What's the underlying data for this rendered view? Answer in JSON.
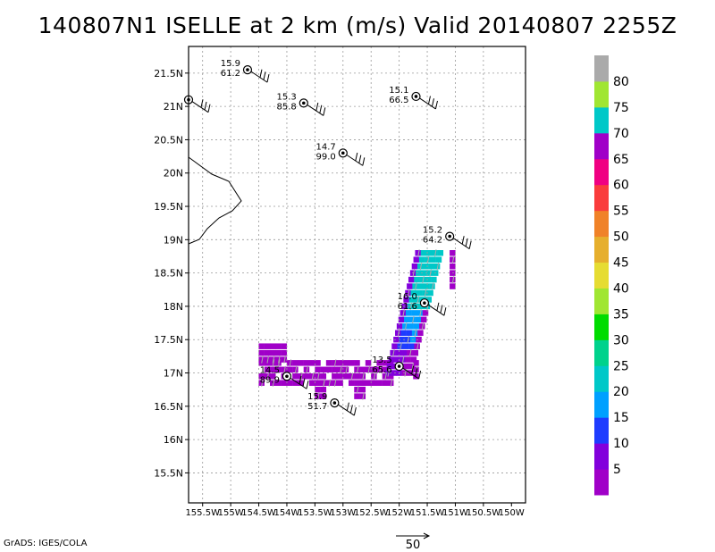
{
  "title": "140807N1 ISELLE at 2 km (m/s) Valid 20140807 2255Z",
  "footer": "GrADS: IGES/COLA",
  "chart_data": {
    "type": "heatmap",
    "title": "140807N1 ISELLE at 2 km (m/s) Valid 20140807 2255Z",
    "x_ticks": [
      "155.5W",
      "155W",
      "154.5W",
      "154W",
      "153.5W",
      "153W",
      "152.5W",
      "152W",
      "151.5W",
      "151W",
      "150.5W",
      "150W"
    ],
    "y_ticks": [
      "15.5N",
      "16N",
      "16.5N",
      "17N",
      "17.5N",
      "18N",
      "18.5N",
      "19N",
      "19.5N",
      "20N",
      "20.5N",
      "21N",
      "21.5N"
    ],
    "xlim": [
      -155.75,
      -149.75
    ],
    "ylim": [
      15.05,
      21.9
    ],
    "grid": true,
    "colorbar": {
      "levels": [
        5,
        10,
        15,
        20,
        25,
        30,
        35,
        40,
        45,
        50,
        55,
        60,
        65,
        70,
        75,
        80
      ],
      "colors": [
        "#a000c8",
        "#8200dc",
        "#1e3cff",
        "#00a0ff",
        "#00c8c8",
        "#00d28c",
        "#00dc00",
        "#a0e632",
        "#e6dc32",
        "#e6af2d",
        "#f08228",
        "#fa3c3c",
        "#f00082",
        "#a000c8",
        "#00c8c8",
        "#a0e632",
        "#aaaaaa"
      ],
      "labels": [
        "5",
        "10",
        "15",
        "20",
        "25",
        "30",
        "35",
        "40",
        "45",
        "50",
        "55",
        "60",
        "65",
        "70",
        "75",
        "80"
      ]
    },
    "vector_scale_label": "50",
    "stations": [
      {
        "lon": -155.75,
        "lat": 21.1,
        "top": "",
        "bottom": ""
      },
      {
        "lon": -154.7,
        "lat": 21.55,
        "top": "15.9",
        "bottom": "61.2"
      },
      {
        "lon": -153.7,
        "lat": 21.05,
        "top": "15.3",
        "bottom": "85.8"
      },
      {
        "lon": -151.7,
        "lat": 21.15,
        "top": "15.1",
        "bottom": "66.5"
      },
      {
        "lon": -153.0,
        "lat": 20.3,
        "top": "14.7",
        "bottom": "99.0"
      },
      {
        "lon": -151.1,
        "lat": 19.05,
        "top": "15.2",
        "bottom": "64.2"
      },
      {
        "lon": -151.55,
        "lat": 18.05,
        "top": "16.0",
        "bottom": "61.6"
      },
      {
        "lon": -152.0,
        "lat": 17.1,
        "top": "13.5",
        "bottom": "65.6"
      },
      {
        "lon": -154.0,
        "lat": 16.95,
        "top": "14.5",
        "bottom": "89.9"
      },
      {
        "lon": -153.15,
        "lat": 16.55,
        "top": "15.9",
        "bottom": "51.7"
      }
    ]
  }
}
